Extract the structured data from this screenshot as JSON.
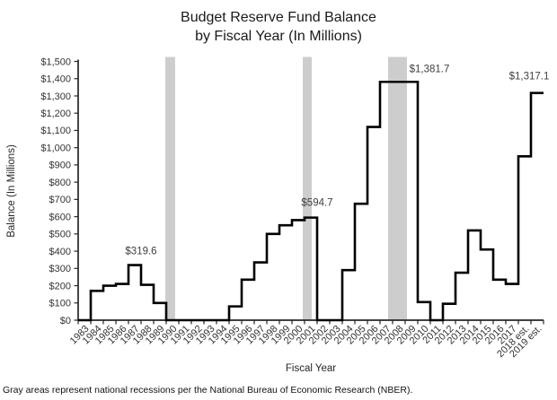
{
  "chart": {
    "title_line1": "Budget Reserve Fund Balance",
    "title_line2": "by Fiscal Year (In Millions)",
    "footnote": "Gray areas represent national recessions per the National Bureau of Economic Research (NBER)."
  },
  "chart_data": {
    "type": "line",
    "line_style": "step",
    "title": "Budget Reserve Fund Balance by Fiscal Year (In Millions)",
    "xlabel": "Fiscal Year",
    "ylabel": "Balance (In Millions)",
    "ylim": [
      0,
      1500
    ],
    "ytick_step": 100,
    "ytick_labels": [
      "$0",
      "$100",
      "$200",
      "$300",
      "$400",
      "$500",
      "$600",
      "$700",
      "$800",
      "$900",
      "$1,000",
      "$1,100",
      "$1,200",
      "$1,300",
      "$1,400",
      "$1,500"
    ],
    "grid": false,
    "legend": "none",
    "categories": [
      "1983",
      "1984",
      "1985",
      "1986",
      "1987",
      "1988",
      "1989",
      "1990",
      "1991",
      "1992",
      "1993",
      "1994",
      "1995",
      "1996",
      "1997",
      "1998",
      "1999",
      "2000",
      "2001",
      "2002",
      "2003",
      "2004",
      "2005",
      "2006",
      "2007",
      "2008",
      "2009",
      "2010",
      "2011",
      "2012",
      "2013",
      "2014",
      "2015",
      "2016",
      "2017",
      "2018 est.",
      "2019 est."
    ],
    "values": [
      0,
      170,
      200,
      210,
      319.6,
      205,
      100,
      0,
      0,
      0,
      0,
      0,
      80,
      235,
      335,
      500,
      550,
      580,
      594.7,
      0,
      0,
      290,
      675,
      1120,
      1381.7,
      1381.7,
      1381.7,
      105,
      0,
      95,
      275,
      520,
      410,
      235,
      210,
      950,
      1317.1
    ],
    "annotations": [
      {
        "label": "$319.6",
        "year": "1987",
        "value": 319.6
      },
      {
        "label": "$594.7",
        "year": "2001",
        "value": 594.7
      },
      {
        "label": "$1,381.7",
        "year": "2009",
        "value": 1381.7
      },
      {
        "label": "$1,317.1",
        "year": "2019 est.",
        "value": 1317.1
      }
    ],
    "recession_bands": [
      {
        "from": 6.93,
        "to": 7.71
      },
      {
        "from": 17.86,
        "to": 18.57
      },
      {
        "from": 24.64,
        "to": 26.14
      }
    ],
    "line_color": "#000000",
    "band_color": "#cdcdcd",
    "axis_color": "#262626"
  }
}
